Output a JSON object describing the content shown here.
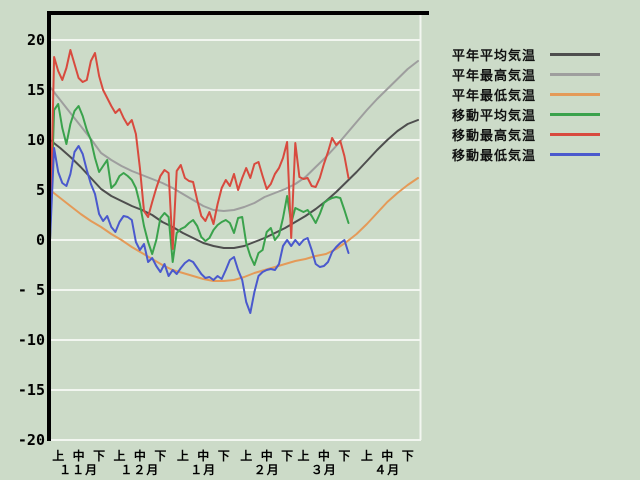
{
  "window": {
    "background_color": "#ccdbc8"
  },
  "chart_data": {
    "type": "line",
    "title": "",
    "grid": true,
    "legend_position": "right",
    "background_color": "#ccdbc8",
    "gridline_color": "#f2f6f0",
    "axis_color": "#000000",
    "inner_border_color": "#f2f6f0",
    "x_axis": {
      "label": "",
      "unit_labels": [
        "上",
        "中",
        "下"
      ],
      "months": [
        "１１月",
        "１２月",
        "１月",
        "２月",
        "３月",
        "４月"
      ],
      "month_start_days": [
        0,
        30,
        61,
        92,
        120,
        151
      ],
      "jun_center_offsets": [
        4,
        14,
        24
      ],
      "total_days": 181
    },
    "y_axis": {
      "label": "",
      "min": -20,
      "max": 20,
      "step": 5,
      "tick_values": [
        20,
        15,
        10,
        5,
        0,
        -5,
        -10,
        -15,
        -20
      ],
      "tick_labels": [
        "20",
        "15",
        "10",
        "5",
        "0",
        "- 5",
        "-10",
        "-15",
        "-20"
      ]
    },
    "series": [
      {
        "name": "平年平均気温",
        "color": "#4e4e4e",
        "start_day": 0,
        "day_step": 5,
        "values": [
          10.0,
          9.2,
          8.3,
          7.3,
          6.2,
          5.1,
          4.4,
          3.9,
          3.4,
          3.0,
          2.5,
          1.8,
          1.3,
          0.7,
          0.2,
          -0.3,
          -0.6,
          -0.8,
          -0.8,
          -0.6,
          -0.2,
          0.2,
          0.7,
          1.2,
          1.8,
          2.4,
          3.1,
          3.9,
          4.8,
          5.8,
          6.8,
          7.9,
          9.0,
          10.0,
          10.9,
          11.6,
          12.0
        ]
      },
      {
        "name": "平年最高気温",
        "color": "#9e9e9e",
        "start_day": 0,
        "day_step": 5,
        "values": [
          15.3,
          14.0,
          12.7,
          11.4,
          10.1,
          8.7,
          8.0,
          7.4,
          6.9,
          6.5,
          6.1,
          5.7,
          5.2,
          4.6,
          4.0,
          3.4,
          3.0,
          2.9,
          3.0,
          3.3,
          3.7,
          4.3,
          4.7,
          5.1,
          5.6,
          6.3,
          7.3,
          8.3,
          9.4,
          10.6,
          11.8,
          13.0,
          14.1,
          15.1,
          16.1,
          17.1,
          17.9
        ]
      },
      {
        "name": "平年最低気温",
        "color": "#e49a58",
        "start_day": 0,
        "day_step": 5,
        "values": [
          5.0,
          4.2,
          3.4,
          2.6,
          1.9,
          1.3,
          0.6,
          0.0,
          -0.7,
          -1.3,
          -1.9,
          -2.5,
          -3.0,
          -3.3,
          -3.6,
          -3.9,
          -4.1,
          -4.1,
          -4.0,
          -3.7,
          -3.3,
          -3.0,
          -2.7,
          -2.4,
          -2.1,
          -1.9,
          -1.6,
          -1.4,
          -0.9,
          -0.2,
          0.6,
          1.6,
          2.7,
          3.8,
          4.7,
          5.5,
          6.2
        ]
      },
      {
        "name": "移動平均気温",
        "color": "#3aa24c",
        "start_day": 0,
        "day_step": 2,
        "values": [
          0,
          13.0,
          13.6,
          11.2,
          9.6,
          11.6,
          12.9,
          13.4,
          12.4,
          11.0,
          10.0,
          8.2,
          6.8,
          7.4,
          8.0,
          5.2,
          5.6,
          6.4,
          6.7,
          6.4,
          6.0,
          5.2,
          3.6,
          1.4,
          -0.2,
          -1.4,
          0.0,
          2.2,
          2.7,
          2.3,
          -2.2,
          0.7,
          1.1,
          1.3,
          1.7,
          2.0,
          1.4,
          0.3,
          -0.1,
          0.2,
          1.0,
          1.5,
          1.8,
          2.0,
          1.7,
          0.7,
          2.2,
          2.3,
          -0.3,
          -1.6,
          -2.5,
          -1.3,
          -1.0,
          0.8,
          1.2,
          0.0,
          0.5,
          2.2,
          4.4,
          1.7,
          3.2,
          3.0,
          2.8,
          3.0,
          2.4,
          1.7,
          2.6,
          3.7,
          4.0,
          4.2,
          4.3,
          4.2,
          3.0,
          1.7
        ]
      },
      {
        "name": "移動最高気温",
        "color": "#d84a3e",
        "start_day": 0,
        "day_step": 2,
        "values": [
          0,
          18.3,
          16.9,
          16.0,
          17.2,
          19.0,
          17.6,
          16.2,
          15.8,
          16.0,
          17.9,
          18.7,
          16.4,
          15.0,
          14.2,
          13.4,
          12.7,
          13.1,
          12.2,
          11.5,
          12.0,
          10.6,
          7.2,
          2.9,
          2.3,
          3.8,
          5.2,
          6.4,
          7.0,
          6.7,
          -0.9,
          6.9,
          7.5,
          6.2,
          5.9,
          5.8,
          4.0,
          2.4,
          1.9,
          2.8,
          1.6,
          3.6,
          5.2,
          6.0,
          5.4,
          6.6,
          5.0,
          6.2,
          7.2,
          6.2,
          7.6,
          7.8,
          6.4,
          5.1,
          5.6,
          6.6,
          7.2,
          8.2,
          9.8,
          0.2,
          9.7,
          6.3,
          6.1,
          6.2,
          5.4,
          5.3,
          6.2,
          7.6,
          8.8,
          10.2,
          9.5,
          9.9,
          8.4,
          6.2
        ]
      },
      {
        "name": "移動最低気温",
        "color": "#4a59cd",
        "start_day": 0,
        "day_step": 2,
        "values": [
          0,
          9.2,
          6.8,
          5.7,
          5.4,
          6.6,
          8.8,
          9.4,
          8.6,
          7.0,
          5.6,
          4.6,
          2.6,
          1.9,
          2.4,
          1.3,
          0.8,
          1.8,
          2.4,
          2.3,
          2.0,
          -0.2,
          -1.0,
          -0.4,
          -2.2,
          -1.8,
          -2.6,
          -3.2,
          -2.4,
          -3.6,
          -3.0,
          -3.4,
          -2.8,
          -2.3,
          -2.0,
          -2.2,
          -2.8,
          -3.4,
          -3.8,
          -3.7,
          -4.0,
          -3.6,
          -3.9,
          -3.0,
          -2.0,
          -1.7,
          -3.0,
          -4.0,
          -6.2,
          -7.3,
          -5.2,
          -3.6,
          -3.2,
          -3.0,
          -2.9,
          -3.0,
          -2.4,
          -0.6,
          0.0,
          -0.6,
          0.0,
          -0.5,
          0.0,
          0.2,
          -1.0,
          -2.4,
          -2.7,
          -2.6,
          -2.2,
          -1.2,
          -0.7,
          -0.3,
          0.0,
          -1.3
        ]
      }
    ]
  }
}
